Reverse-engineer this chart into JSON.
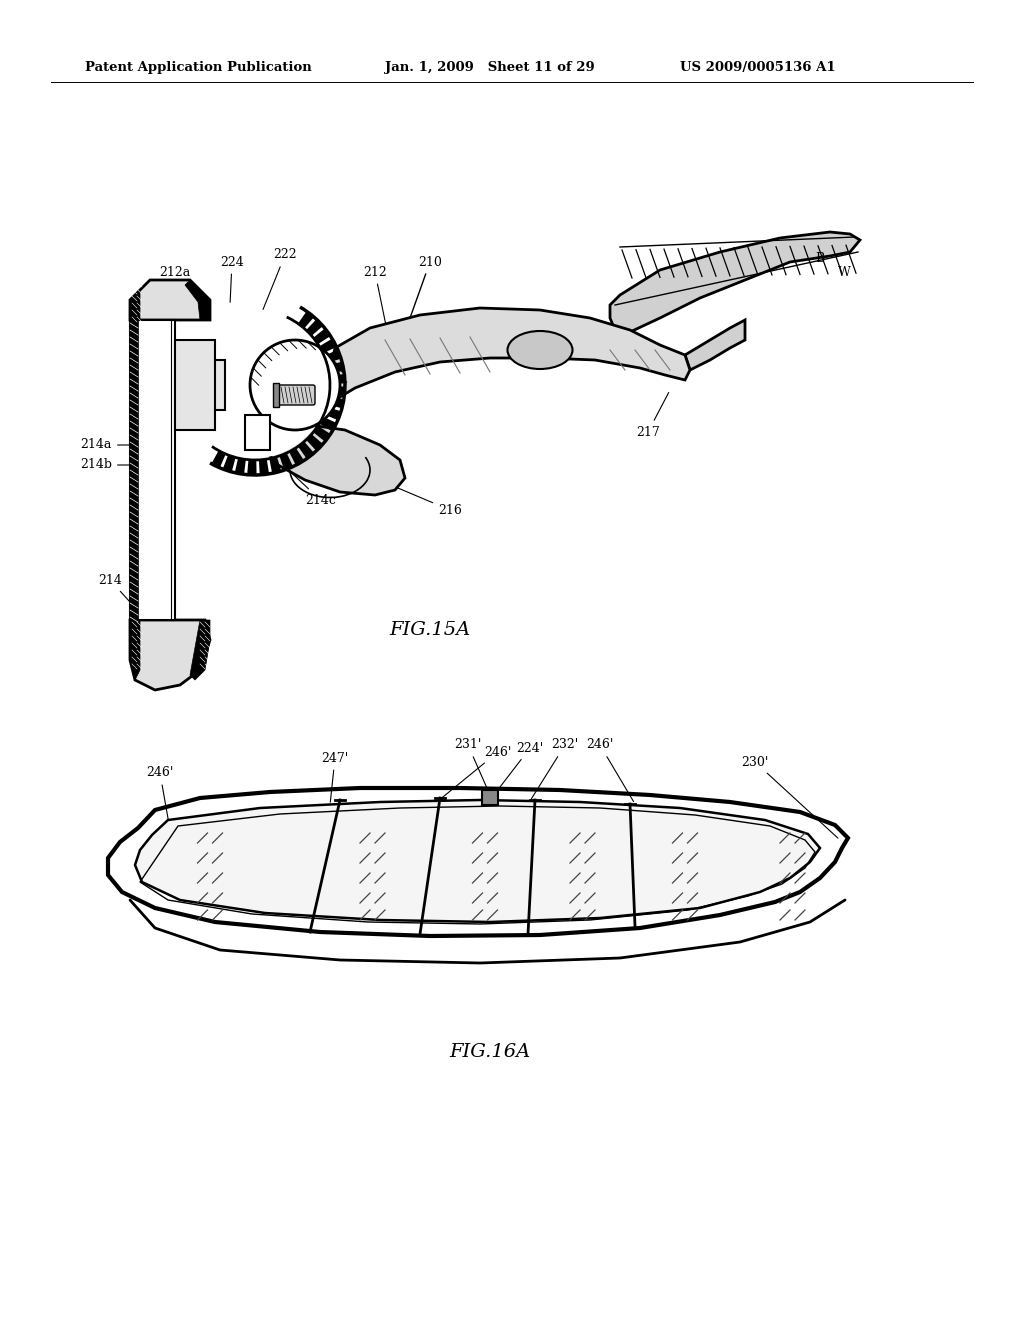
{
  "background_color": "#ffffff",
  "header_left": "Patent Application Publication",
  "header_center": "Jan. 1, 2009   Sheet 11 of 29",
  "header_right": "US 2009/0005136 A1",
  "fig15a_label": "FIG.15A",
  "fig16a_label": "FIG.16A"
}
